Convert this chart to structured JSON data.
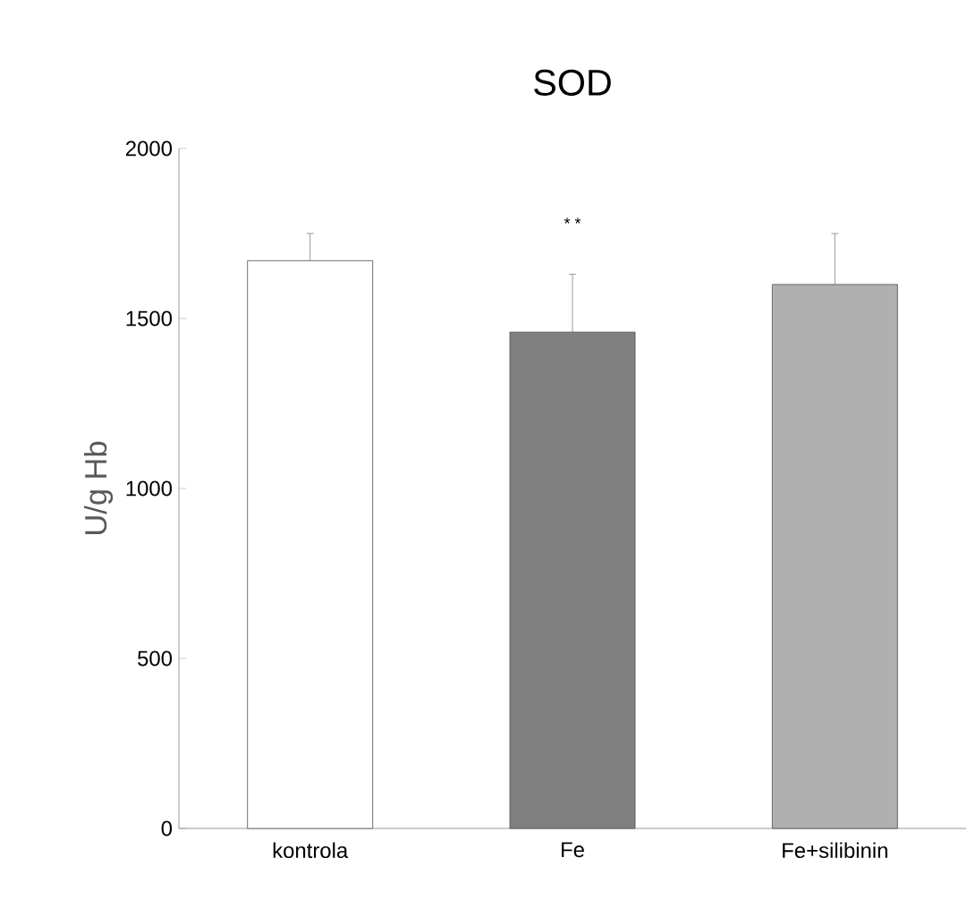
{
  "chart_data": {
    "type": "bar",
    "title": "SOD",
    "ylabel": "U/g Hb",
    "categories": [
      "kontrola",
      "Fe",
      "Fe+silibinin"
    ],
    "values": [
      1670,
      1460,
      1600
    ],
    "errors": [
      80,
      170,
      150
    ],
    "colors": [
      "#ffffff",
      "#808080",
      "#b0b0b0"
    ],
    "ylim": [
      0,
      2000
    ],
    "yticks": [
      0,
      500,
      1000,
      1500,
      2000
    ],
    "annotations": [
      "* *"
    ],
    "grid": false
  }
}
